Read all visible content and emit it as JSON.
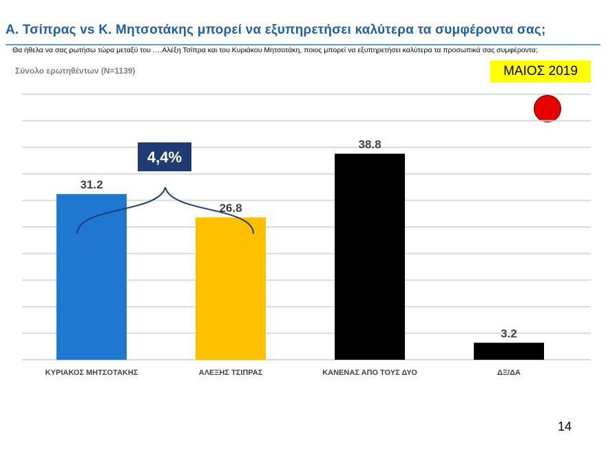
{
  "header": {
    "title": "Α. Τσίπρας vs Κ. Μητσοτάκης μπορεί να εξυπηρετήσει καλύτερα τα συμφέροντα σας;",
    "question": "Θα ήθελα να σας ρωτήσω τώρα μεταξύ του ….Αλέξη Τσίπρα και του Κυριάκου Μητσοτάκη, ποιος μπορεί να εξυπηρετήσει καλύτερα τα προσωπικά σας συμφέροντα;",
    "sample": "Σύνολο ερωτηθέντων (N=1139)",
    "date_badge": "ΜΑΙΟΣ 2019"
  },
  "page_number": "14",
  "colors": {
    "title": "#1f5fa8",
    "badge_bg": "#ffff00",
    "dot": "#e60000",
    "gap_box": "#1f3b73"
  },
  "chart_data": {
    "type": "bar",
    "title": "",
    "xlabel": "",
    "ylabel": "",
    "ylim": [
      0,
      50
    ],
    "grid": true,
    "categories": [
      "ΚΥΡΙΑΚΟΣ ΜΗΤΣΟΤΑΚΗΣ",
      "ΑΛΕΞΗΣ ΤΣΙΠΡΑΣ",
      "ΚΑΝΕΝΑΣ ΑΠΟ ΤΟΥΣ ΔΥΟ",
      "ΔΞ/ΔΑ"
    ],
    "values": [
      31.2,
      26.8,
      38.8,
      3.2
    ],
    "value_labels": [
      "31.2",
      "26.8",
      "38.8",
      "3.2"
    ],
    "bar_colors": [
      "#1f77d0",
      "#ffc000",
      "#000000",
      "#000000"
    ],
    "annotation": {
      "text": "4,4%",
      "brace_between": [
        "ΚΥΡΙΑΚΟΣ ΜΗΤΣΟΤΑΚΗΣ",
        "ΑΛΕΞΗΣ ΤΣΙΠΡΑΣ"
      ]
    }
  }
}
